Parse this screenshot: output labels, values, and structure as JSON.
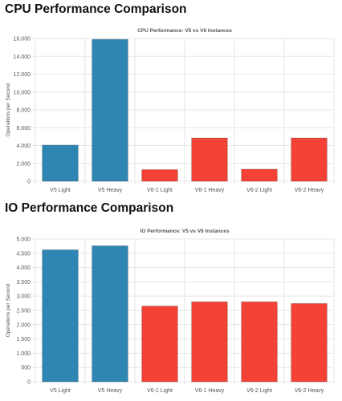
{
  "headings": {
    "cpu": "CPU Performance Comparison",
    "io": "IO Performance Comparison"
  },
  "colors": {
    "v5": "#2f86b3",
    "v6": "#f44336",
    "grid": "#e6e6e6"
  },
  "chart_data": [
    {
      "type": "bar",
      "title": "CPU Performance: V5 vs V6 Instances",
      "xlabel": "",
      "ylabel": "Operations per Second",
      "categories": [
        "V5 Light",
        "V5 Heavy",
        "V6-1 Light",
        "V6-1 Heavy",
        "V6-2 Light",
        "V6-2 Heavy"
      ],
      "values": [
        4050,
        15900,
        1300,
        4850,
        1350,
        4850
      ],
      "ylim": [
        0,
        16000
      ],
      "ytick_values": [
        0,
        2000,
        4000,
        6000,
        8000,
        10000,
        12000,
        14000,
        16000
      ],
      "ytick_labels": [
        "0",
        "2.000",
        "4.000",
        "6.000",
        "8.000",
        "10.000",
        "12.000",
        "14.000",
        "16.000"
      ],
      "bar_colors": [
        "#2f86b3",
        "#2f86b3",
        "#f44336",
        "#f44336",
        "#f44336",
        "#f44336"
      ],
      "grid": true,
      "legend": "none"
    },
    {
      "type": "bar",
      "title": "IO Performance: V5 vs V6 Instances",
      "xlabel": "",
      "ylabel": "Operations per Second",
      "categories": [
        "V5 Light",
        "V5 Heavy",
        "V6-1 Light",
        "V6-1 Heavy",
        "V6-2 Light",
        "V6-2 Heavy"
      ],
      "values": [
        4620,
        4760,
        2650,
        2800,
        2800,
        2740
      ],
      "ylim": [
        0,
        5000
      ],
      "ytick_values": [
        0,
        500,
        1000,
        1500,
        2000,
        2500,
        3000,
        3500,
        4000,
        4500,
        5000
      ],
      "ytick_labels": [
        "0",
        "500",
        "1.000",
        "1.500",
        "2.000",
        "2.500",
        "3.000",
        "3.500",
        "4.000",
        "4.500",
        "5.000"
      ],
      "bar_colors": [
        "#2f86b3",
        "#2f86b3",
        "#f44336",
        "#f44336",
        "#f44336",
        "#f44336"
      ],
      "grid": true,
      "legend": "none"
    }
  ]
}
